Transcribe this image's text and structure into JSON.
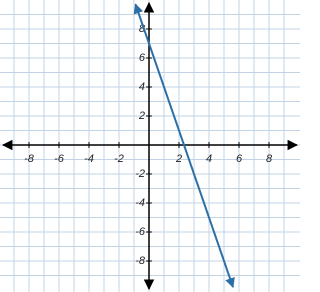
{
  "chart_data": {
    "type": "line",
    "x": [
      -0.9,
      5.6
    ],
    "series": [
      {
        "color": "#2c6fa6",
        "values": [
          9.7,
          -9.8
        ]
      }
    ],
    "xlim": [
      -10,
      10
    ],
    "ylim": [
      -10,
      10
    ],
    "xticks": [
      -8,
      -6,
      -4,
      -2,
      2,
      4,
      6,
      8
    ],
    "yticks": [
      -8,
      -6,
      -4,
      -2,
      2,
      4,
      6,
      8
    ],
    "xgrid": [
      -9,
      -8,
      -7,
      -6,
      -5,
      -4,
      -3,
      -2,
      -1,
      0,
      1,
      2,
      3,
      4,
      5,
      6,
      7,
      8,
      9
    ],
    "ygrid": [
      -9,
      -8,
      -7,
      -6,
      -5,
      -4,
      -3,
      -2,
      -1,
      0,
      1,
      2,
      3,
      4,
      5,
      6,
      7,
      8,
      9
    ],
    "grid": true
  }
}
